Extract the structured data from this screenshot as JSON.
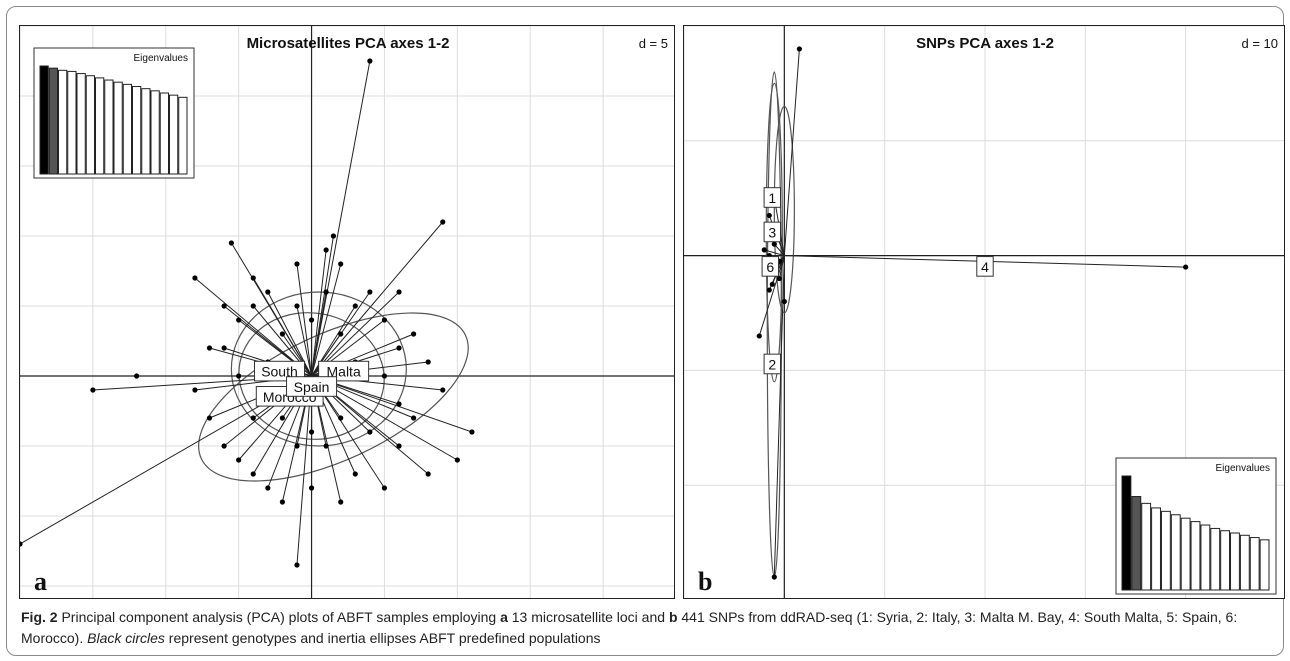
{
  "caption": {
    "label": "Fig. 2",
    "t1": "  Principal component analysis (PCA) plots of ABFT samples employing ",
    "a": "a",
    "t2": " 13 microsatellite loci and ",
    "b": "b",
    "t3": " 441 SNPs from ddRAD-seq (1: Syria, 2: Italy, 3: Malta M. Bay, 4: South Malta, 5: Spain, 6: Morocco). ",
    "italic": "Black circles",
    "t4": " represent genotypes and inertia ellipses ABFT predefined populations"
  },
  "chart_data": [
    {
      "type": "scatter",
      "panel_letter": "a",
      "title": "Microsatellites PCA axes 1-2",
      "scale_label": "d = 5",
      "eigen_label": "Eigenvalues",
      "grid": true,
      "xlim": [
        -20,
        25
      ],
      "ylim": [
        -16,
        25
      ],
      "grid_step": 5,
      "population_labels": [
        "Malta",
        "South",
        "Morocco",
        "Spain"
      ],
      "eigenvalues": [
        1.0,
        0.98,
        0.96,
        0.95,
        0.93,
        0.91,
        0.89,
        0.87,
        0.85,
        0.83,
        0.81,
        0.79,
        0.77,
        0.75,
        0.73,
        0.71
      ],
      "eigen_selected": 2,
      "centroid": [
        0,
        0
      ],
      "points": [
        [
          4,
          22.5
        ],
        [
          9,
          11
        ],
        [
          1.5,
          10
        ],
        [
          -5.5,
          9.5
        ],
        [
          6,
          6
        ],
        [
          -8,
          7
        ],
        [
          -12,
          0
        ],
        [
          -15,
          -1
        ],
        [
          -20,
          -12
        ],
        [
          -1,
          -13.5
        ],
        [
          11,
          -4
        ],
        [
          10,
          -6
        ],
        [
          8,
          -7
        ],
        [
          5,
          -8
        ],
        [
          2,
          -9
        ],
        [
          -2,
          -9
        ],
        [
          -4,
          -7
        ],
        [
          -6,
          -5
        ],
        [
          -7,
          -3
        ],
        [
          -8,
          -1
        ],
        [
          -7,
          2
        ],
        [
          -5,
          4
        ],
        [
          -3,
          6
        ],
        [
          -1,
          5
        ],
        [
          1,
          6
        ],
        [
          3,
          5
        ],
        [
          5,
          4
        ],
        [
          7,
          3
        ],
        [
          8,
          1
        ],
        [
          9,
          -1
        ],
        [
          -4,
          7
        ],
        [
          2,
          8
        ],
        [
          -6,
          5
        ],
        [
          6,
          2
        ],
        [
          7,
          -3
        ],
        [
          -5,
          -6
        ],
        [
          -3,
          -8
        ],
        [
          0,
          -8
        ],
        [
          3,
          -7
        ],
        [
          6,
          -5
        ],
        [
          -2,
          3
        ],
        [
          2,
          3
        ],
        [
          -3,
          1
        ],
        [
          3,
          1
        ],
        [
          -2,
          -3
        ],
        [
          2,
          -3
        ],
        [
          -1,
          -5
        ],
        [
          1,
          -5
        ],
        [
          4,
          -4
        ],
        [
          -4,
          -3
        ],
        [
          5,
          0
        ],
        [
          -5,
          0
        ],
        [
          0,
          4
        ],
        [
          0,
          -4
        ],
        [
          -6,
          2
        ],
        [
          6,
          -2
        ],
        [
          4,
          6
        ],
        [
          -4,
          5
        ],
        [
          -1,
          8
        ],
        [
          1,
          9
        ]
      ],
      "ellipses": [
        {
          "cx": 1.5,
          "cy": -1.5,
          "rx": 10,
          "ry": 4.5,
          "angle": -25
        },
        {
          "cx": 0.5,
          "cy": 0.5,
          "rx": 6,
          "ry": 5.5,
          "angle": 0
        },
        {
          "cx": 0,
          "cy": 0,
          "rx": 5,
          "ry": 4.5,
          "angle": 10
        }
      ]
    },
    {
      "type": "scatter",
      "panel_letter": "b",
      "title": "SNPs PCA axes 1-2",
      "scale_label": "d = 10",
      "eigen_label": "Eigenvalues",
      "grid": true,
      "xlim": [
        -10,
        50
      ],
      "ylim": [
        -30,
        20
      ],
      "grid_step": 10,
      "population_labels": [
        "1",
        "3",
        "6",
        "2",
        "4"
      ],
      "eigenvalues": [
        1.0,
        0.82,
        0.76,
        0.72,
        0.69,
        0.66,
        0.63,
        0.6,
        0.57,
        0.54,
        0.52,
        0.5,
        0.48,
        0.46,
        0.44
      ],
      "eigen_selected": 2,
      "points": [
        [
          1.5,
          18
        ],
        [
          -1,
          5
        ],
        [
          -1.5,
          3.5
        ],
        [
          -0.5,
          -2
        ],
        [
          0,
          -4
        ],
        [
          -2.5,
          -7
        ],
        [
          -1,
          -28
        ],
        [
          40,
          -1
        ],
        [
          -1,
          1
        ],
        [
          -1.5,
          0
        ],
        [
          -0.5,
          -0.5
        ],
        [
          -1,
          -1.5
        ],
        [
          -2,
          0.5
        ],
        [
          -1.5,
          -3
        ],
        [
          -0.8,
          2
        ],
        [
          -1.2,
          -2.5
        ]
      ],
      "ellipses": [
        {
          "cx": -1,
          "cy": 2,
          "rx": 0.8,
          "ry": 13,
          "angle": 0
        },
        {
          "cx": 0,
          "cy": 4,
          "rx": 1,
          "ry": 9,
          "angle": 0
        },
        {
          "cx": -1,
          "cy": -6,
          "rx": 0.7,
          "ry": 22,
          "angle": 0
        }
      ]
    }
  ]
}
